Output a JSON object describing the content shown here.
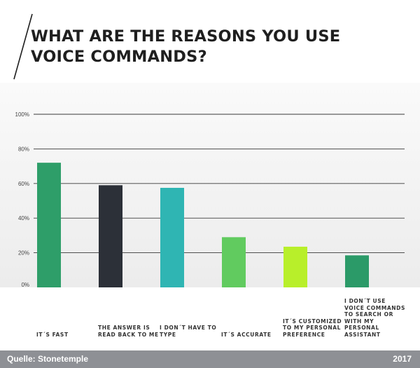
{
  "title": "WHAT ARE THE REASONS YOU USE VOICE COMMANDS?",
  "footer": {
    "source": "Quelle: Stonetemple",
    "year": "2017"
  },
  "chart_data": {
    "type": "bar",
    "categories": [
      "IT´S FAST",
      "THE ANSWER IS READ BACK TO ME",
      "I DON´T HAVE TO TYPE",
      "IT´S ACCURATE",
      "IT´S CUSTOMIZED TO MY PERSONAL PREFERENCE",
      "I DON´T USE VOICE COMMANDS TO SEARCH OR WITH MY PERSONAL ASSISTANT"
    ],
    "values": [
      72,
      59,
      57.5,
      29,
      23.5,
      18.5
    ],
    "colors": [
      "#2e9e69",
      "#2c3038",
      "#2fb5b3",
      "#61cb5f",
      "#b8ef2a",
      "#2b9a68"
    ],
    "yticks": [
      "0%",
      "20%",
      "40%",
      "60%",
      "80%",
      "100%"
    ],
    "ylim": [
      0,
      100
    ],
    "grid": true
  }
}
